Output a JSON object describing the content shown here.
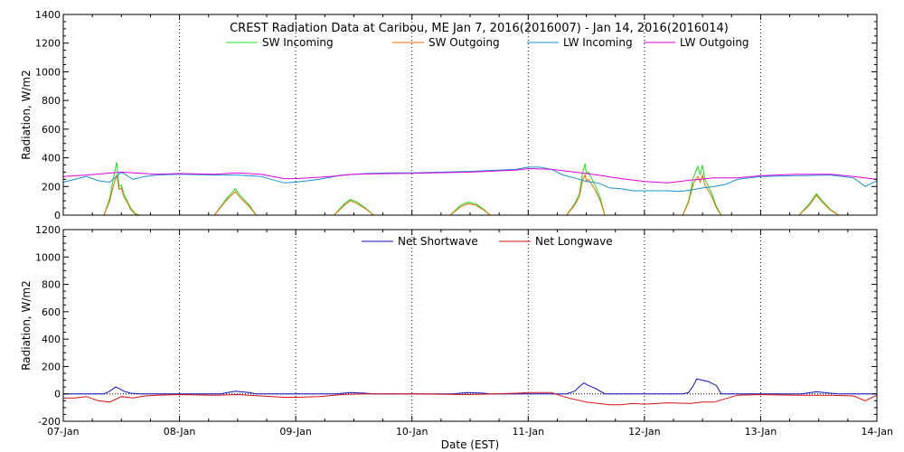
{
  "chart_data": [
    {
      "type": "line",
      "title": "CREST Radiation Data at Caribou, ME   Jan  7, 2016(2016007) - Jan 14, 2016(2016014)",
      "xlabel": "",
      "ylabel": "Radiation, W/m2",
      "xlim": [
        7.0,
        14.0
      ],
      "ylim": [
        0,
        1400
      ],
      "yticks": [
        0,
        200,
        400,
        600,
        800,
        1000,
        1200,
        1400
      ],
      "grid": true,
      "legend": "top",
      "series": [
        {
          "name": "SW Incoming",
          "color": "#22dd22",
          "x": [
            7.0,
            7.35,
            7.4,
            7.43,
            7.46,
            7.48,
            7.5,
            7.52,
            7.55,
            7.58,
            7.62,
            7.66,
            8.0,
            8.3,
            8.4,
            8.48,
            8.52,
            8.6,
            8.66,
            9.0,
            9.33,
            9.42,
            9.47,
            9.53,
            9.6,
            9.67,
            10.0,
            10.33,
            10.42,
            10.48,
            10.55,
            10.62,
            10.67,
            11.0,
            11.33,
            11.4,
            11.44,
            11.47,
            11.49,
            11.5,
            11.52,
            11.55,
            11.58,
            11.62,
            11.66,
            12.0,
            12.33,
            12.38,
            12.42,
            12.46,
            12.48,
            12.5,
            12.52,
            12.55,
            12.58,
            12.62,
            12.66,
            13.0,
            13.33,
            13.42,
            13.48,
            13.53,
            13.6,
            13.67,
            14.0
          ],
          "y": [
            0,
            0,
            120,
            250,
            370,
            200,
            210,
            150,
            100,
            50,
            10,
            0,
            0,
            0,
            110,
            185,
            140,
            70,
            0,
            0,
            0,
            80,
            110,
            90,
            50,
            0,
            0,
            0,
            70,
            90,
            80,
            40,
            0,
            0,
            0,
            80,
            150,
            300,
            360,
            290,
            300,
            250,
            200,
            120,
            0,
            0,
            0,
            100,
            260,
            340,
            280,
            350,
            250,
            200,
            150,
            60,
            0,
            0,
            0,
            80,
            150,
            100,
            40,
            0,
            0
          ]
        },
        {
          "name": "SW Outgoing",
          "color": "#e07000",
          "x": [
            7.0,
            7.35,
            7.4,
            7.43,
            7.46,
            7.48,
            7.5,
            7.52,
            7.55,
            7.58,
            7.62,
            7.66,
            8.0,
            8.3,
            8.4,
            8.48,
            8.52,
            8.6,
            8.66,
            9.0,
            9.33,
            9.42,
            9.47,
            9.53,
            9.6,
            9.67,
            10.0,
            10.33,
            10.42,
            10.48,
            10.55,
            10.62,
            10.67,
            11.0,
            11.33,
            11.4,
            11.44,
            11.47,
            11.49,
            11.5,
            11.52,
            11.55,
            11.58,
            11.62,
            11.66,
            12.0,
            12.33,
            12.38,
            12.42,
            12.46,
            12.48,
            12.5,
            12.52,
            12.55,
            12.58,
            12.62,
            12.66,
            13.0,
            13.33,
            13.42,
            13.48,
            13.53,
            13.6,
            13.67,
            14.0
          ],
          "y": [
            0,
            0,
            100,
            200,
            280,
            180,
            190,
            130,
            90,
            40,
            5,
            0,
            0,
            0,
            100,
            165,
            125,
            60,
            0,
            0,
            0,
            70,
            100,
            80,
            45,
            0,
            0,
            0,
            60,
            80,
            70,
            35,
            0,
            0,
            0,
            70,
            130,
            250,
            280,
            240,
            250,
            210,
            170,
            100,
            0,
            0,
            0,
            90,
            220,
            270,
            230,
            280,
            210,
            170,
            130,
            50,
            0,
            0,
            0,
            70,
            140,
            90,
            35,
            0,
            0
          ]
        },
        {
          "name": "LW Incoming",
          "color": "#1a90d0",
          "x": [
            7.0,
            7.1,
            7.2,
            7.3,
            7.4,
            7.5,
            7.6,
            7.7,
            7.8,
            8.0,
            8.3,
            8.5,
            8.7,
            8.9,
            9.0,
            9.2,
            9.4,
            9.6,
            9.8,
            10.0,
            10.5,
            10.9,
            11.0,
            11.1,
            11.2,
            11.3,
            11.4,
            11.5,
            11.6,
            11.7,
            11.8,
            11.9,
            12.0,
            12.2,
            12.3,
            12.4,
            12.5,
            12.6,
            12.7,
            12.8,
            13.0,
            13.3,
            13.6,
            13.8,
            13.9,
            14.0
          ],
          "y": [
            230,
            250,
            270,
            240,
            230,
            300,
            250,
            270,
            280,
            285,
            280,
            280,
            270,
            225,
            230,
            250,
            280,
            290,
            295,
            295,
            305,
            320,
            335,
            335,
            320,
            280,
            260,
            235,
            225,
            190,
            185,
            170,
            170,
            170,
            165,
            175,
            190,
            200,
            215,
            250,
            270,
            275,
            280,
            260,
            200,
            240
          ]
        },
        {
          "name": "LW Outgoing",
          "color": "#dd00dd",
          "x": [
            7.0,
            7.2,
            7.5,
            7.8,
            8.0,
            8.3,
            8.5,
            8.7,
            8.9,
            9.0,
            9.3,
            9.5,
            9.8,
            10.0,
            10.5,
            10.9,
            11.0,
            11.2,
            11.4,
            11.6,
            11.8,
            12.0,
            12.2,
            12.4,
            12.6,
            12.8,
            13.0,
            13.3,
            13.6,
            13.8,
            14.0
          ],
          "y": [
            270,
            280,
            300,
            285,
            290,
            285,
            295,
            285,
            255,
            255,
            270,
            285,
            290,
            292,
            300,
            315,
            325,
            320,
            300,
            280,
            255,
            235,
            225,
            245,
            260,
            260,
            275,
            285,
            285,
            270,
            250
          ]
        }
      ]
    },
    {
      "type": "line",
      "title": "",
      "xlabel": "Date (EST)",
      "ylabel": "Radiation, W/m2",
      "xlim": [
        7.0,
        14.0
      ],
      "ylim": [
        -200,
        1200
      ],
      "yticks": [
        -200,
        0,
        200,
        400,
        600,
        800,
        1000,
        1200
      ],
      "xticks": [
        7,
        8,
        9,
        10,
        11,
        12,
        13,
        14
      ],
      "xticklabels": [
        "07-Jan",
        "08-Jan",
        "09-Jan",
        "10-Jan",
        "11-Jan",
        "12-Jan",
        "13-Jan",
        "14-Jan"
      ],
      "grid": true,
      "legend": "top",
      "series": [
        {
          "name": "Net Shortwave",
          "color": "#1010c0",
          "x": [
            7.0,
            7.35,
            7.4,
            7.45,
            7.48,
            7.52,
            7.58,
            7.66,
            8.0,
            8.35,
            8.48,
            8.6,
            8.66,
            9.0,
            9.35,
            9.47,
            9.6,
            9.67,
            10.0,
            10.35,
            10.48,
            10.62,
            10.67,
            11.0,
            11.33,
            11.4,
            11.45,
            11.48,
            11.52,
            11.58,
            11.66,
            12.0,
            12.33,
            12.38,
            12.42,
            12.45,
            12.5,
            12.55,
            12.62,
            12.66,
            13.0,
            13.35,
            13.48,
            13.6,
            13.67,
            14.0
          ],
          "y": [
            0,
            0,
            20,
            50,
            40,
            20,
            5,
            0,
            0,
            0,
            20,
            10,
            0,
            0,
            0,
            10,
            5,
            0,
            0,
            0,
            10,
            5,
            0,
            0,
            0,
            20,
            60,
            80,
            60,
            40,
            0,
            0,
            0,
            10,
            60,
            110,
            100,
            90,
            60,
            0,
            0,
            0,
            15,
            5,
            0,
            0
          ]
        },
        {
          "name": "Net Longwave",
          "color": "#dd1010",
          "x": [
            7.0,
            7.1,
            7.2,
            7.3,
            7.4,
            7.5,
            7.6,
            7.7,
            7.8,
            8.0,
            8.3,
            8.5,
            8.7,
            8.9,
            9.0,
            9.2,
            9.4,
            9.6,
            9.8,
            10.0,
            10.5,
            10.9,
            11.0,
            11.2,
            11.3,
            11.4,
            11.5,
            11.6,
            11.7,
            11.8,
            11.9,
            12.0,
            12.2,
            12.4,
            12.5,
            12.6,
            12.8,
            13.0,
            13.3,
            13.6,
            13.8,
            13.9,
            14.0
          ],
          "y": [
            -30,
            -30,
            -20,
            -50,
            -60,
            -20,
            -30,
            -15,
            -10,
            -5,
            -10,
            -5,
            -15,
            -25,
            -25,
            -20,
            -5,
            0,
            0,
            0,
            -5,
            5,
            10,
            10,
            -20,
            -40,
            -60,
            -70,
            -80,
            -80,
            -70,
            -75,
            -65,
            -70,
            -60,
            -60,
            -10,
            -5,
            -10,
            -10,
            -15,
            -50,
            -10
          ]
        }
      ]
    }
  ]
}
